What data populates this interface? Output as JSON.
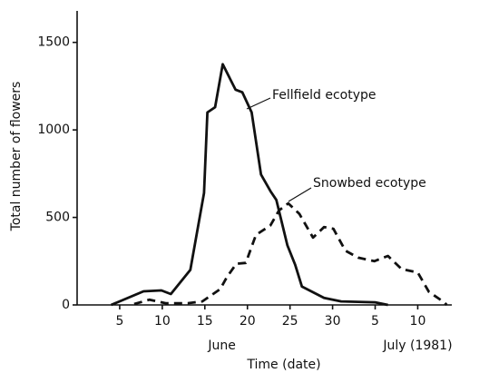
{
  "chart_data": {
    "type": "line",
    "xlabel": "Time (date)",
    "ylabel": "Total number of flowers",
    "xlim": [
      0,
      44
    ],
    "xticks": [
      5,
      10,
      15,
      20,
      25,
      30,
      {
        "value": 35,
        "label": "5"
      },
      {
        "value": 40,
        "label": "10"
      }
    ],
    "month_labels": [
      {
        "value": 17,
        "label": "June"
      },
      {
        "value": 40,
        "label": "July (1981)"
      }
    ],
    "ylim": [
      0,
      1680
    ],
    "yticks": [
      0,
      500,
      1000,
      1500
    ],
    "series": [
      {
        "name": "Fellfield ecotype",
        "color": "#111111",
        "line_style": "solid",
        "x": [
          4,
          7.8,
          9.9,
          11,
          13.3,
          14.9,
          15.3,
          16.2,
          17.1,
          18.6,
          19.4,
          20.5,
          21.6,
          22.7,
          23.4,
          24.7,
          25.6,
          26.4,
          29,
          31,
          35,
          36.5
        ],
        "values": [
          0,
          78,
          83,
          62,
          200,
          640,
          1100,
          1130,
          1375,
          1230,
          1215,
          1100,
          745,
          650,
          600,
          340,
          230,
          105,
          40,
          20,
          15,
          0
        ]
      },
      {
        "name": "Snowbed ecotype",
        "color": "#111111",
        "line_style": "dashed",
        "x": [
          6.7,
          8.5,
          10.4,
          13,
          14.7,
          16.8,
          17.6,
          18.7,
          19.8,
          21,
          22.7,
          23.7,
          24.8,
          26.1,
          27.7,
          29,
          30.1,
          31.5,
          33,
          34.9,
          36.5,
          38.1,
          40,
          41.3,
          43.1,
          43.4
        ],
        "values": [
          5,
          30,
          10,
          10,
          20,
          90,
          160,
          235,
          240,
          400,
          455,
          540,
          580,
          520,
          385,
          445,
          435,
          310,
          270,
          250,
          280,
          205,
          185,
          75,
          15,
          0
        ]
      }
    ]
  }
}
